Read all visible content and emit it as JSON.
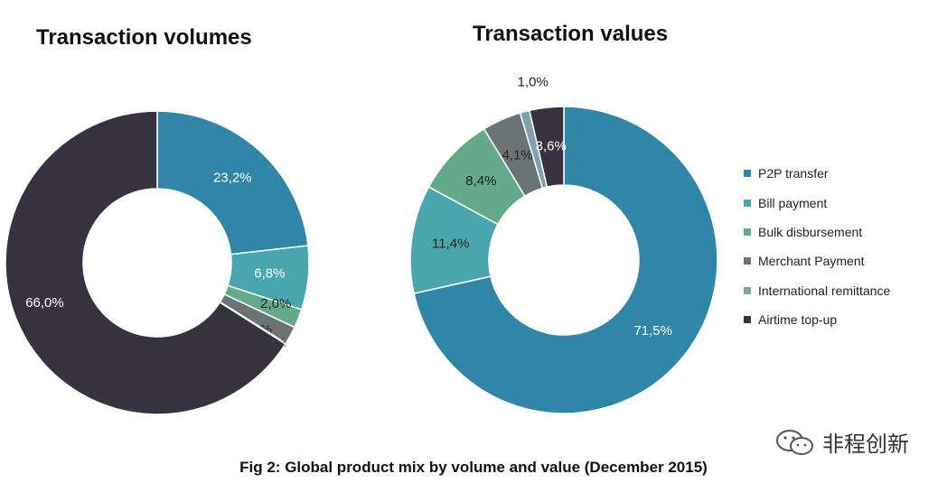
{
  "chart_data": [
    {
      "type": "donut",
      "title": "Transaction volumes",
      "categories": [
        "P2P transfer",
        "Bill payment",
        "Bulk disbursement",
        "Merchant Payment",
        "International remittance",
        "Airtime top-up"
      ],
      "values": [
        23.2,
        6.8,
        2.0,
        1.9,
        0.1,
        66.0
      ],
      "data_labels": [
        "23,2%",
        "6,8%",
        "2,0%",
        "1,9%",
        "0,1%",
        "66,0%"
      ]
    },
    {
      "type": "donut",
      "title": "Transaction values",
      "categories": [
        "P2P transfer",
        "Bill payment",
        "Bulk disbursement",
        "Merchant Payment",
        "International remittance",
        "Airtime top-up"
      ],
      "values": [
        71.5,
        11.4,
        8.4,
        4.1,
        1.0,
        3.6
      ],
      "data_labels": [
        "71,5%",
        "11,4%",
        "8,4%",
        "4,1%",
        "1,0%",
        "3,6%"
      ],
      "legend": "right"
    }
  ],
  "legend": {
    "items": [
      {
        "label": "P2P transfer",
        "color": "#2f86a6"
      },
      {
        "label": "Bill payment",
        "color": "#4aa6ae"
      },
      {
        "label": "Bulk disbursement",
        "color": "#63a98a"
      },
      {
        "label": "Merchant Payment",
        "color": "#6b7475"
      },
      {
        "label": "International remittance",
        "color": "#7fa1ad"
      },
      {
        "label": "Airtime top-up",
        "color": "#37323f"
      }
    ]
  },
  "caption": "Fig 2: Global product mix by volume and value (December 2015)",
  "watermark": "非程创新"
}
